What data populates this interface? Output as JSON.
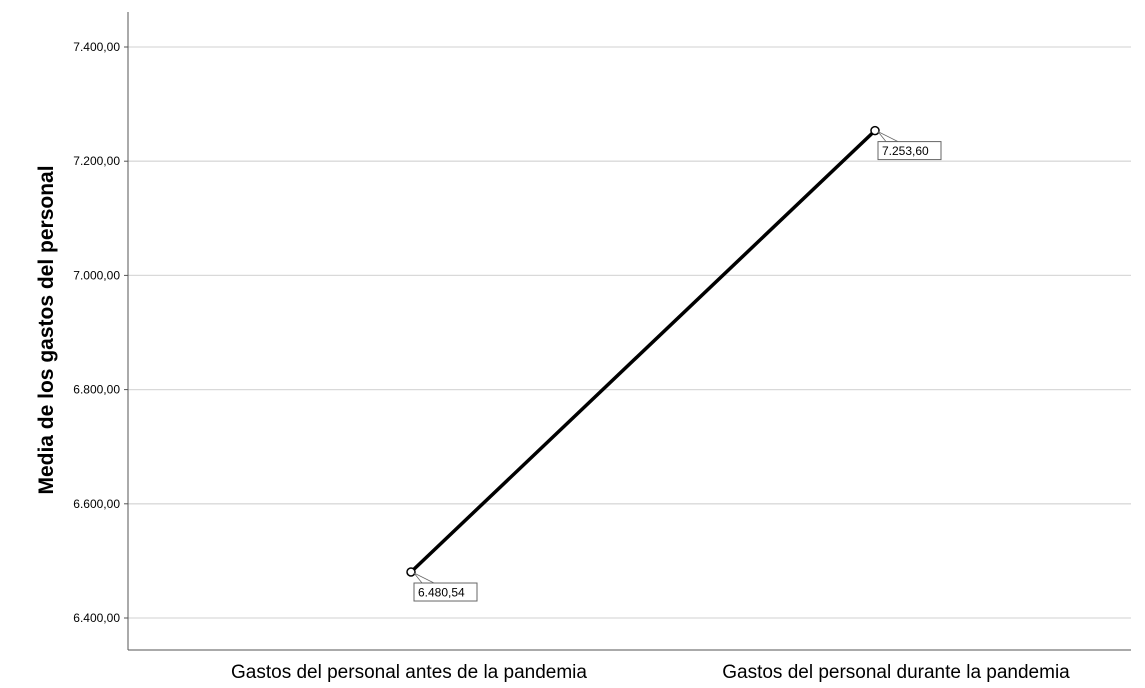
{
  "chart_data": {
    "type": "line",
    "categories": [
      "Gastos del personal antes de la pandemia",
      "Gastos del personal durante la pandemia"
    ],
    "series": [
      {
        "values": [
          6480.54,
          7253.6
        ],
        "data_labels": [
          "6.480,54",
          "7.253,60"
        ]
      }
    ],
    "xlabel": "",
    "ylabel": "Media de los gastos del personal",
    "ylim": [
      6380,
      7430
    ],
    "yticks": [
      6400,
      6600,
      6800,
      7000,
      7200,
      7400
    ],
    "ytick_labels": [
      "6.400,00",
      "6.600,00",
      "6.800,00",
      "7.000,00",
      "7.200,00",
      "7.400,00"
    ],
    "grid": true,
    "legend": "none",
    "colors": {
      "line": "#000000",
      "grid": "#d9d9d9",
      "axis": "#555555"
    }
  }
}
